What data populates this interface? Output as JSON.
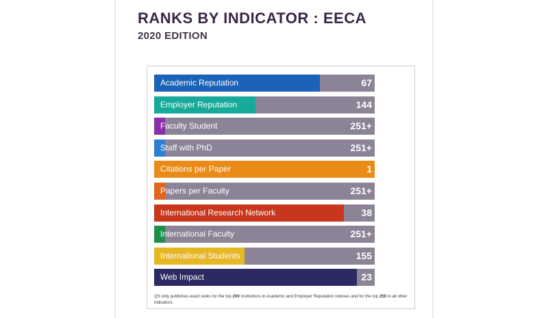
{
  "header": {
    "title": "RANKS BY INDICATOR : EECA",
    "subtitle": "2020 EDITION"
  },
  "chart_data": {
    "type": "bar",
    "title": "RANKS BY INDICATOR : EECA",
    "subtitle": "2020 EDITION",
    "categories": [
      "Academic Reputation",
      "Employer Reputation",
      "Faculty Student",
      "Staff with PhD",
      "Citations per Paper",
      "Papers per Faculty",
      "International Research Network",
      "International Faculty",
      "International Students",
      "Web Impact"
    ],
    "rank_labels": [
      "67",
      "144",
      "251+",
      "251+",
      "1",
      "251+",
      "38",
      "251+",
      "155",
      "23"
    ],
    "fill_fraction": [
      0.75,
      0.46,
      0.05,
      0.05,
      1.0,
      0.05,
      0.86,
      0.05,
      0.41,
      0.92
    ],
    "colors": [
      "#1a63b8",
      "#17aa9a",
      "#8b2fa6",
      "#2e7fd0",
      "#ea8b17",
      "#e2661c",
      "#c8361b",
      "#1f8e4c",
      "#e7b625",
      "#2c2a63"
    ],
    "track_color": "#8c8397",
    "grid": false,
    "legend": "none"
  },
  "footnote": {
    "part1": "QS only publishes exact ranks for the top ",
    "num1": "200",
    "part2": " institutions in Academic and Employer Reputation indexes and for the top ",
    "num2": "250",
    "part3": " in all other indicators."
  }
}
